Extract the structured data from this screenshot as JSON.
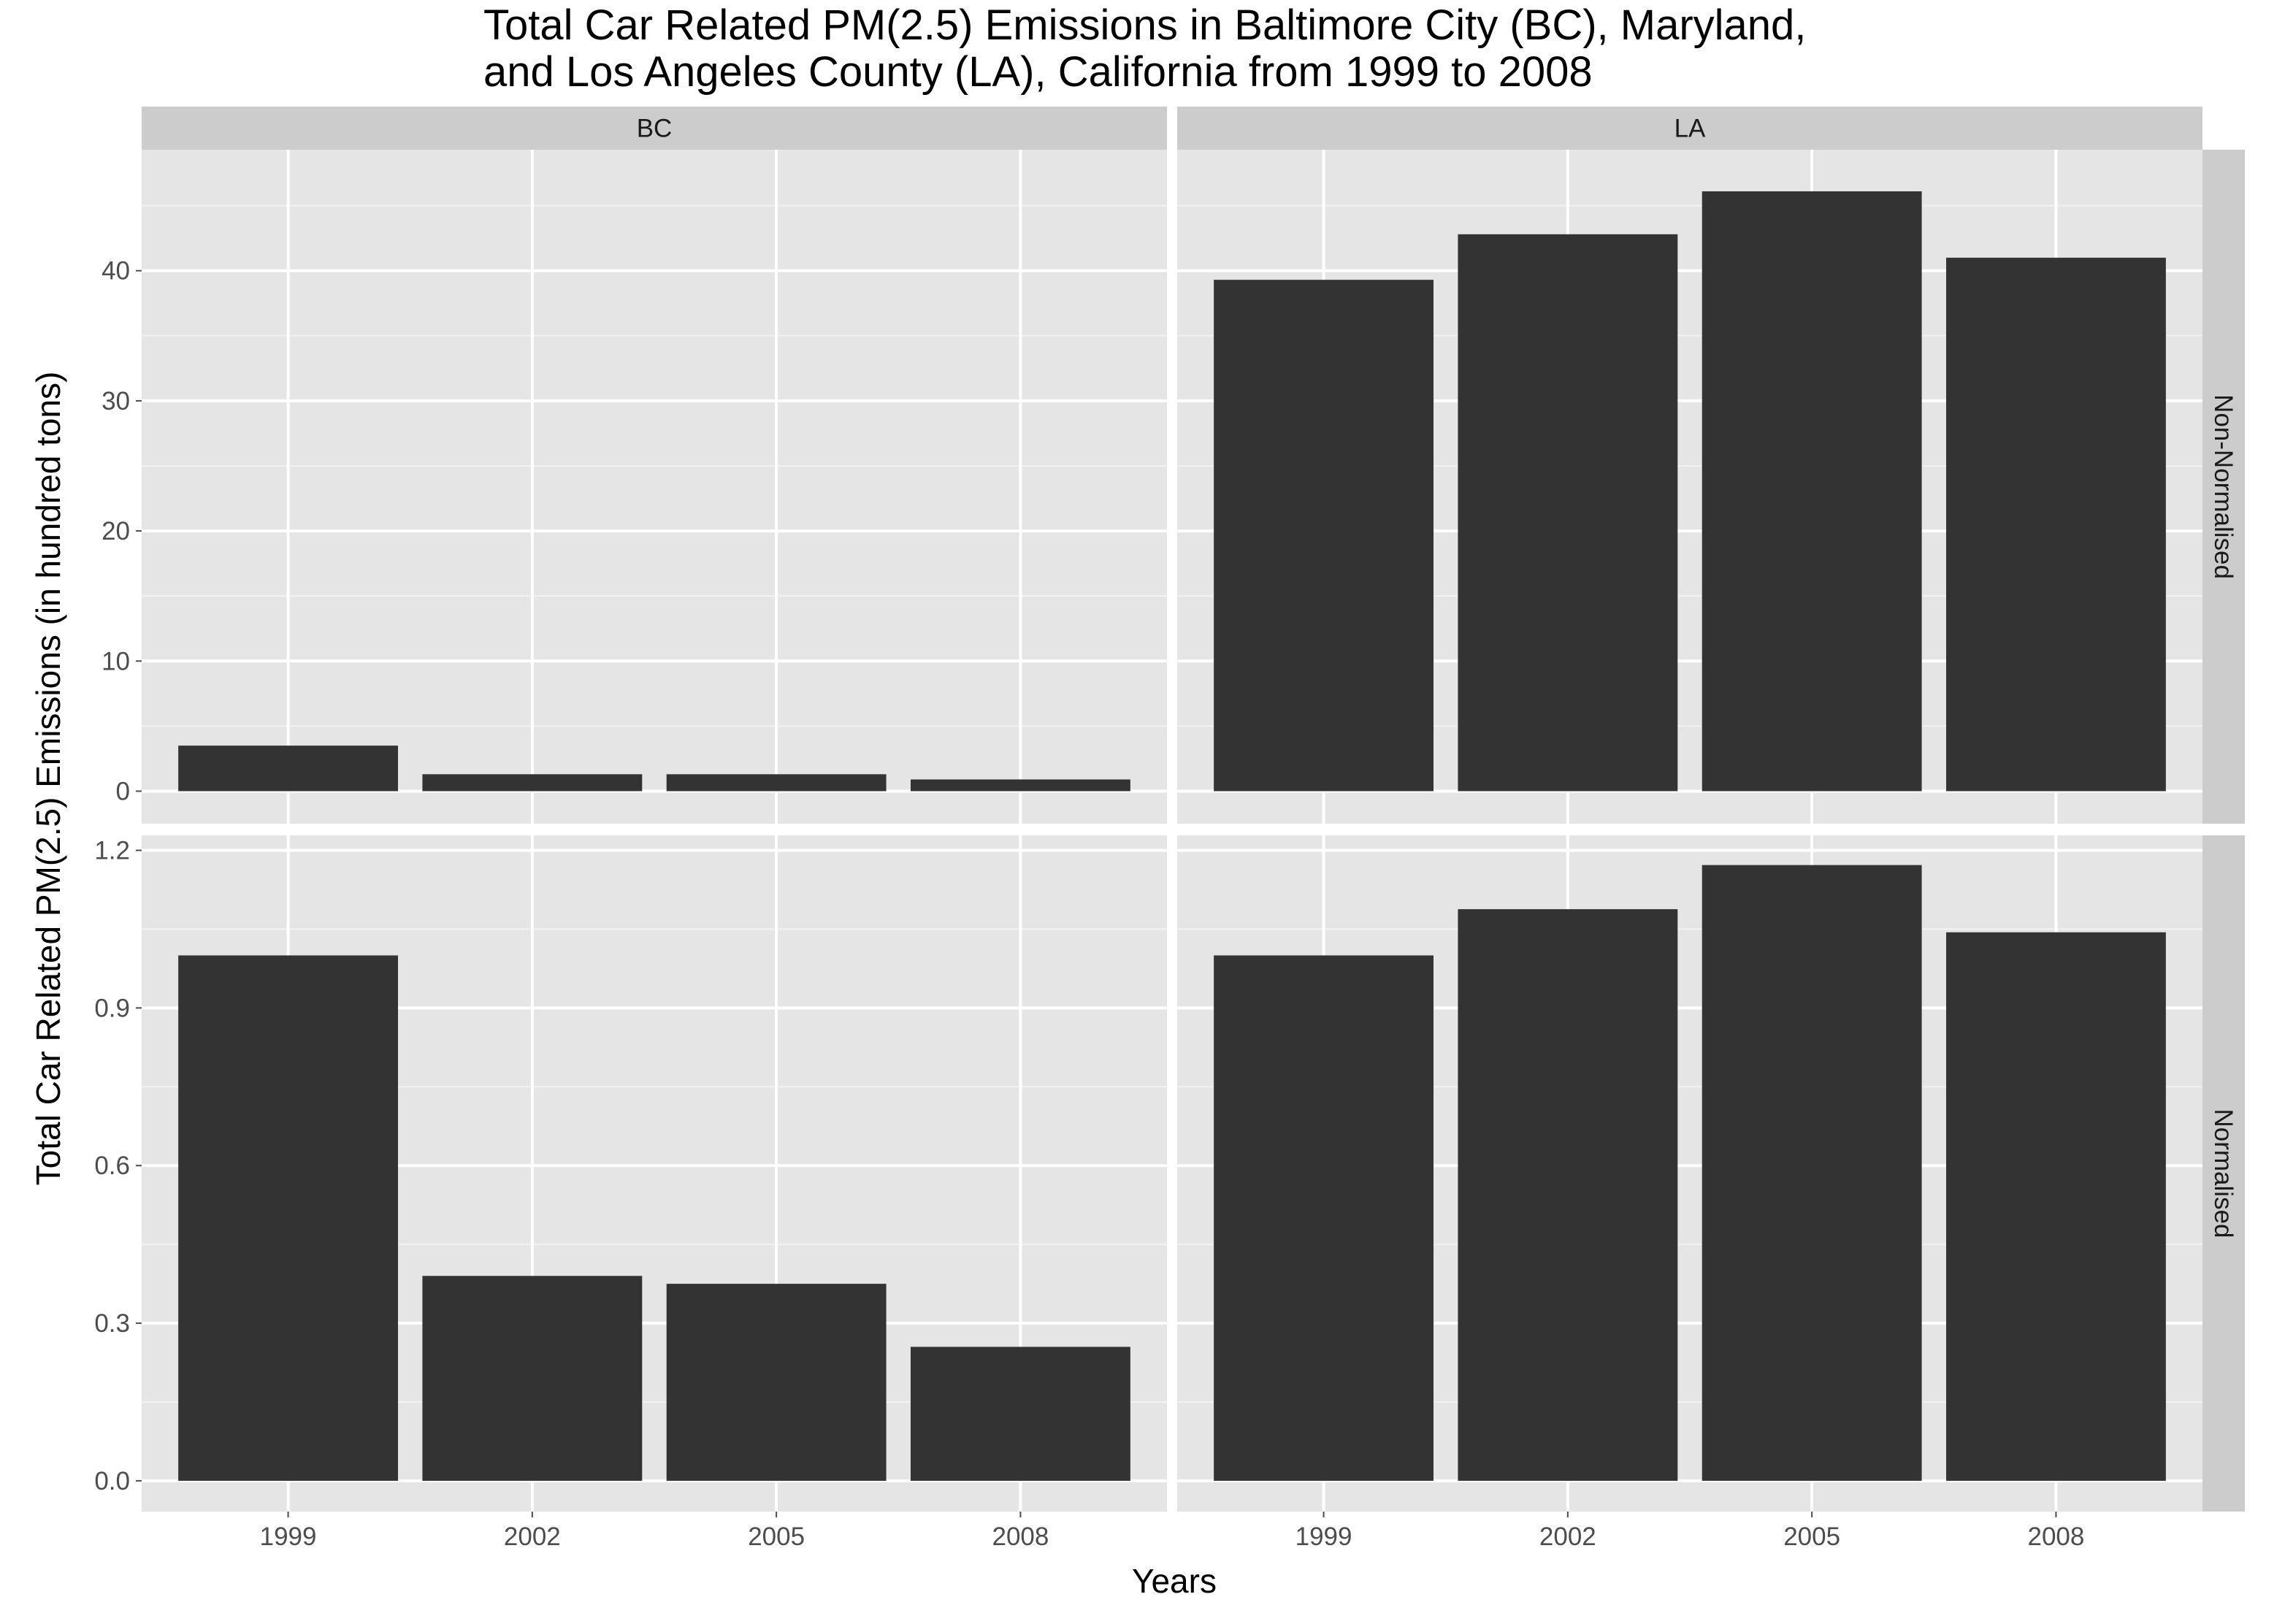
{
  "chart_data": {
    "type": "bar",
    "title": "Total Car Related PM(2.5) Emissions in Baltimore City (BC), Maryland,\nand Los Angeles County (LA), California from 1999 to 2008",
    "title_lines": [
      "Total Car Related PM(2.5) Emissions in Baltimore City (BC), Maryland,",
      "and Los Angeles County (LA), California from 1999 to 2008"
    ],
    "xlabel": "Years",
    "ylabel": "Total Car Related PM(2.5) Emissions (in hundred tons)",
    "categories": [
      "1999",
      "2002",
      "2005",
      "2008"
    ],
    "facet_columns": [
      "BC",
      "LA"
    ],
    "facet_rows": [
      "Non-Normalised",
      "Normalised"
    ],
    "bar_color": "#333333",
    "panel_background": "#e5e5e5",
    "strip_background": "#cccccc",
    "grid": true,
    "rows": [
      {
        "label": "Non-Normalised",
        "ylim": [
          -2.5,
          49.3
        ],
        "yticks": [
          0,
          10,
          20,
          30,
          40
        ],
        "ytick_labels": [
          "0",
          "10",
          "20",
          "30",
          "40"
        ],
        "minor_yticks": [
          5,
          15,
          25,
          35,
          45
        ],
        "series": [
          {
            "name": "BC",
            "values": [
              3.5,
              1.3,
              1.3,
              0.9
            ]
          },
          {
            "name": "LA",
            "values": [
              39.3,
              42.8,
              46.1,
              41.0
            ]
          }
        ]
      },
      {
        "label": "Normalised",
        "ylim": [
          -0.0585,
          1.2285
        ],
        "yticks": [
          0.0,
          0.3,
          0.6,
          0.9,
          1.2
        ],
        "ytick_labels": [
          "0.0",
          "0.3",
          "0.6",
          "0.9",
          "1.2"
        ],
        "minor_yticks": [
          0.15,
          0.45,
          0.75,
          1.05
        ],
        "series": [
          {
            "name": "BC",
            "values": [
              1.0,
              0.39,
              0.375,
              0.255
            ]
          },
          {
            "name": "LA",
            "values": [
              1.0,
              1.088,
              1.172,
              1.044
            ]
          }
        ]
      }
    ]
  }
}
